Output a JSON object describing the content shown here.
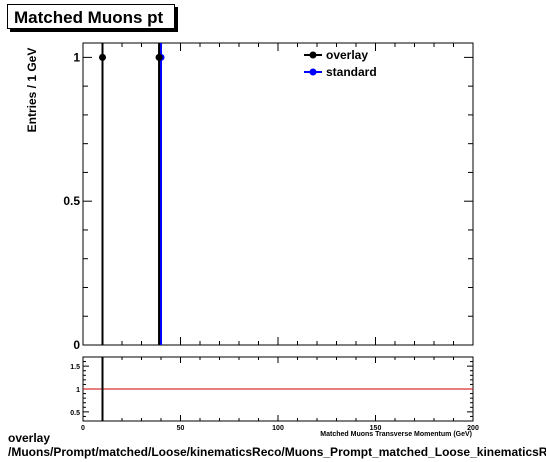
{
  "title": "Matched Muons pt",
  "footer": {
    "line1": "overlay",
    "line2": "/Muons/Prompt/matched/Loose/kinematicsReco/Muons_Prompt_matched_Loose_kinematicsReco_pt"
  },
  "chart_data": {
    "type": "histogram",
    "ylabel": "Entries / 1 GeV",
    "xlabel": "Matched Muons Transverse Momentum (GeV)",
    "xlim": [
      0,
      200
    ],
    "ylim": [
      0,
      1.05
    ],
    "x_ticks": [
      "0",
      "50",
      "100",
      "150",
      "200"
    ],
    "y_ticks": [
      "0",
      "0.5",
      "1"
    ],
    "legend_position": "top-right",
    "series": [
      {
        "name": "overlay",
        "color": "#000000",
        "x": [
          10,
          39
        ],
        "y": [
          1,
          1
        ]
      },
      {
        "name": "standard",
        "color": "#0000ff",
        "x": [
          40
        ],
        "y": [
          1
        ]
      }
    ],
    "ratio": {
      "ylim": [
        0.3,
        1.7
      ],
      "y_ticks": [
        "0.5",
        "1",
        "1.5"
      ],
      "reference": 1,
      "reference_color": "#cc0000",
      "lines_x": [
        10
      ]
    }
  }
}
